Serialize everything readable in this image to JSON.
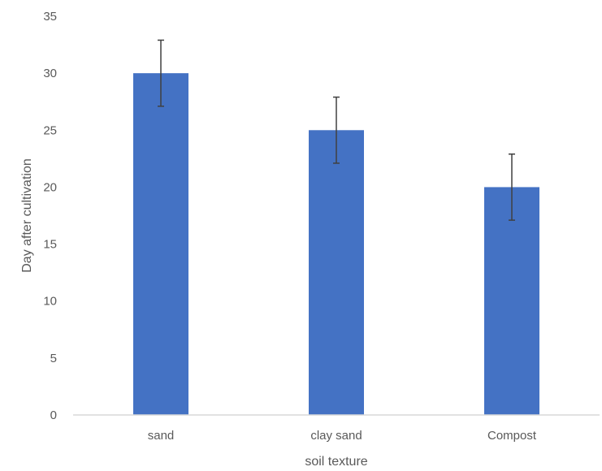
{
  "chart_data": {
    "type": "bar",
    "title": "",
    "xlabel": "soil texture",
    "ylabel": "Day after cultivation",
    "categories": [
      "sand",
      "clay sand",
      "Compost"
    ],
    "values": [
      30,
      25,
      20
    ],
    "error": [
      2.9,
      2.9,
      2.9
    ],
    "ylim": [
      0,
      35
    ],
    "yticks": [
      0,
      5,
      10,
      15,
      20,
      25,
      30,
      35
    ],
    "grid": false,
    "legend": "none",
    "bar_color": "#4472C4",
    "error_bar_color": "#404040",
    "axis_color": "#D9D9D9",
    "text_color": "#595959"
  }
}
